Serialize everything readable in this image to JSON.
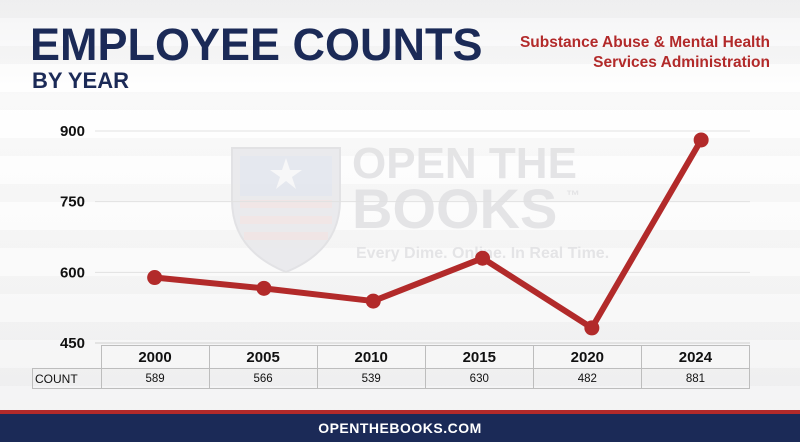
{
  "header": {
    "title": "EMPLOYEE COUNTS",
    "subtitle": "BY YEAR",
    "agency_line1": "Substance Abuse & Mental Health",
    "agency_line2": "Services Administration"
  },
  "watermark": {
    "line1": "OPEN THE",
    "line2": "BOOKS",
    "trademark": "™",
    "tagline": "Every Dime. Online. In Real Time."
  },
  "footer": {
    "text": "OPENTHEBOOKS.COM"
  },
  "colors": {
    "line": "#b22a2a",
    "navy": "#1b2a57",
    "accent_red": "#b22a2a"
  },
  "chart_data": {
    "type": "line",
    "categories": [
      "2000",
      "2005",
      "2010",
      "2015",
      "2020",
      "2024"
    ],
    "series": [
      {
        "values": [
          589,
          566,
          539,
          630,
          482,
          881
        ]
      }
    ],
    "row_label": "COUNT",
    "y_ticks": [
      450,
      600,
      750,
      900
    ],
    "ylim": [
      450,
      900
    ],
    "grid": true,
    "legend": "none"
  }
}
